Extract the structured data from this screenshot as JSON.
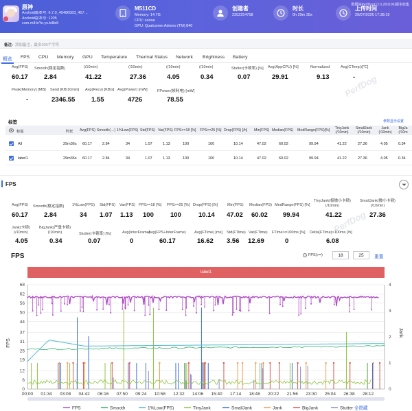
{
  "header": {
    "app_name": "原神",
    "app_lines": [
      "Android版本号: 6.7.0_45486583_457…",
      "Android版本号: 1205",
      "com.miHoYo.ys.bilibili"
    ],
    "device_name": "M511CD",
    "device_lines": [
      "Memory: 14.7G",
      "CPU: canoe",
      "GPU: Qualcomm Adreno (TM) 840"
    ],
    "creator_title": "创建者",
    "creator_value": "2352254758",
    "duration_title": "时长",
    "duration_value": "0h 29m 35s",
    "upload_title": "上传时间",
    "upload_value": "29/07/2026 17:38:19",
    "top_right": "数据由PerfDog(12.0.260106)版本收集"
  },
  "notes": {
    "label": "备注:",
    "placeholder": "添加备注，最多200个字符"
  },
  "tabs": [
    "概览",
    "FPS",
    "CPU",
    "Memory",
    "GPU",
    "Temperature",
    "Thermal Status",
    "Network",
    "Brightness",
    "Battery"
  ],
  "summary": {
    "row1": [
      {
        "label": "Avg(FPS)",
        "value": "60.17"
      },
      {
        "label": "Smooth(稳定指数)",
        "value": "2.84"
      },
      {
        "label": "(/10min)",
        "value": "41.22"
      },
      {
        "label": "(/10min)",
        "value": "27.36"
      },
      {
        "label": "(/10min)",
        "value": "4.05"
      },
      {
        "label": "(/10min)",
        "value": "0.34"
      },
      {
        "label": "Stutter(卡顿率) [%]",
        "value": "0.07"
      },
      {
        "label": "Avg(AppCPU) [%]",
        "value": "29.91"
      },
      {
        "label": "Normalized",
        "value": "9.13"
      },
      {
        "label": "Avg(CTemp)[℃]",
        "value": "-"
      }
    ],
    "row2": [
      {
        "label": "Peak(Memory) [MB]",
        "value": "-"
      },
      {
        "label": "Send [KB/10min]",
        "value": "2346.55"
      },
      {
        "label": "Avg(Recv) [KB/s]",
        "value": "1.55"
      },
      {
        "label": "Avg(Power) [mW]",
        "value": "4726"
      },
      {
        "label": "FPower(帧耗电) [mW]",
        "value": "78.55"
      }
    ]
  },
  "label_table": {
    "title": "标签",
    "link": "参数显示设置",
    "headers": [
      "标签",
      "时长",
      "Avg(FPS)",
      "Smooth(…)",
      "1%Low(FPS)",
      "Std(FPS)",
      "Var(FPS)",
      "FPS>=18 [%]",
      "FPS>=25 [%]",
      "Drop(FPS) [/h]",
      "Min(FPS)",
      "Median(FPS)",
      "MedRange(FPS)[%]",
      "TinyJank (/10min)",
      "SmallJank (/10min)",
      "Jank (/10min)",
      "BigJa (/10m"
    ],
    "rows": [
      {
        "name": "All",
        "cells": [
          "29m36s",
          "60.17",
          "2.84",
          "34",
          "1.07",
          "1.13",
          "100",
          "100",
          "10.14",
          "47.02",
          "60.02",
          "99.94",
          "41.22",
          "27.36",
          "4.05",
          "0.34"
        ]
      },
      {
        "name": "label1",
        "cells": [
          "29m36s",
          "60.17",
          "2.84",
          "34",
          "1.07",
          "1.13",
          "100",
          "100",
          "10.14",
          "47.02",
          "60.02",
          "99.94",
          "41.22",
          "27.36",
          "4.05",
          "0.34"
        ]
      }
    ]
  },
  "fps_section": {
    "title": "FPS",
    "row1": [
      {
        "label": "Avg(FPS)",
        "value": "60.17"
      },
      {
        "label": "Smooth(稳定指数)",
        "value": "2.84"
      },
      {
        "label": "1%Low(FPS)",
        "value": "34"
      },
      {
        "label": "Std(FPS)",
        "value": "1.07"
      },
      {
        "label": "Var(FPS)",
        "value": "1.13"
      },
      {
        "label": "FPS>=18 [%]",
        "value": "100"
      },
      {
        "label": "FPS>=25 [%]",
        "value": "100"
      },
      {
        "label": "Drop(FPS) [/h]",
        "value": "10.14"
      },
      {
        "label": "Min(FPS)",
        "value": "47.02"
      },
      {
        "label": "Median(FPS)",
        "value": "60.02"
      },
      {
        "label": "MedRange(FPS) [%]",
        "value": "99.94"
      },
      {
        "label": "TinyJank(极微小卡顿)\n(/10min)",
        "value": "41.22"
      },
      {
        "label": "SmallJank(微小卡顿)\n(/10min)",
        "value": "27.36"
      }
    ],
    "row2": [
      {
        "label": "Jank(卡顿)\n(/10min)",
        "value": "4.05"
      },
      {
        "label": "BigJank(严重卡顿)\n(/10min)",
        "value": "0.34"
      },
      {
        "label": "Stutter(卡顿率) [%]",
        "value": "0.07"
      },
      {
        "label": "Avg(InterFrame)",
        "value": "0"
      },
      {
        "label": "Avg(FPS+InterFrame)",
        "value": "60.17"
      },
      {
        "label": "Avg(FTime) [ms]",
        "value": "16.62"
      },
      {
        "label": "Std(FTime)",
        "value": "3.56"
      },
      {
        "label": "Var(FTime)",
        "value": "12.69"
      },
      {
        "label": "FTime>=100ms [%]",
        "value": "0"
      },
      {
        "label": "Delta(FTime)>100ms [/h]",
        "value": "6.08"
      }
    ],
    "chart_title": "FPS",
    "threshold_label": "FPS(>=)",
    "threshold_a": "18",
    "threshold_b": "25",
    "reset_label": "重置",
    "banner_label": "label1"
  },
  "chart_data": {
    "type": "line",
    "title": "FPS",
    "ylabel": "FPS",
    "y2label": "Jank",
    "yticks": [
      0,
      6,
      12,
      19,
      25,
      31,
      37,
      44,
      50,
      56,
      62,
      68
    ],
    "y2ticks": [
      0,
      1,
      2,
      3,
      4
    ],
    "ylim": [
      0,
      68
    ],
    "y2lim": [
      0,
      4
    ],
    "x_ticks": [
      "00:00",
      "01:34",
      "03:08",
      "04:42",
      "06:16",
      "07:50",
      "09:24",
      "10:58",
      "12:32",
      "14:06",
      "15:40",
      "17:14",
      "18:48",
      "20:22",
      "21:56",
      "23:30",
      "25:04",
      "26:38",
      "28:12"
    ],
    "series": [
      {
        "name": "FPS",
        "color": "#b04fc4",
        "approx_value": 60
      },
      {
        "name": "Smooth",
        "color": "#33b06b",
        "approx_value": 28
      },
      {
        "name": "1%Low(FPS)",
        "color": "#4fb9c9",
        "approx_value": 28
      },
      {
        "name": "TinyJank",
        "color": "#8cc63f"
      },
      {
        "name": "SmallJank",
        "color": "#3d6ce3"
      },
      {
        "name": "Jank",
        "color": "#f29b4a"
      },
      {
        "name": "BigJank",
        "color": "#e05555"
      },
      {
        "name": "Stutter",
        "color": "#8a8ad8"
      }
    ],
    "legend_extra": "全隐藏",
    "grid": true,
    "legend_position": "bottom"
  }
}
